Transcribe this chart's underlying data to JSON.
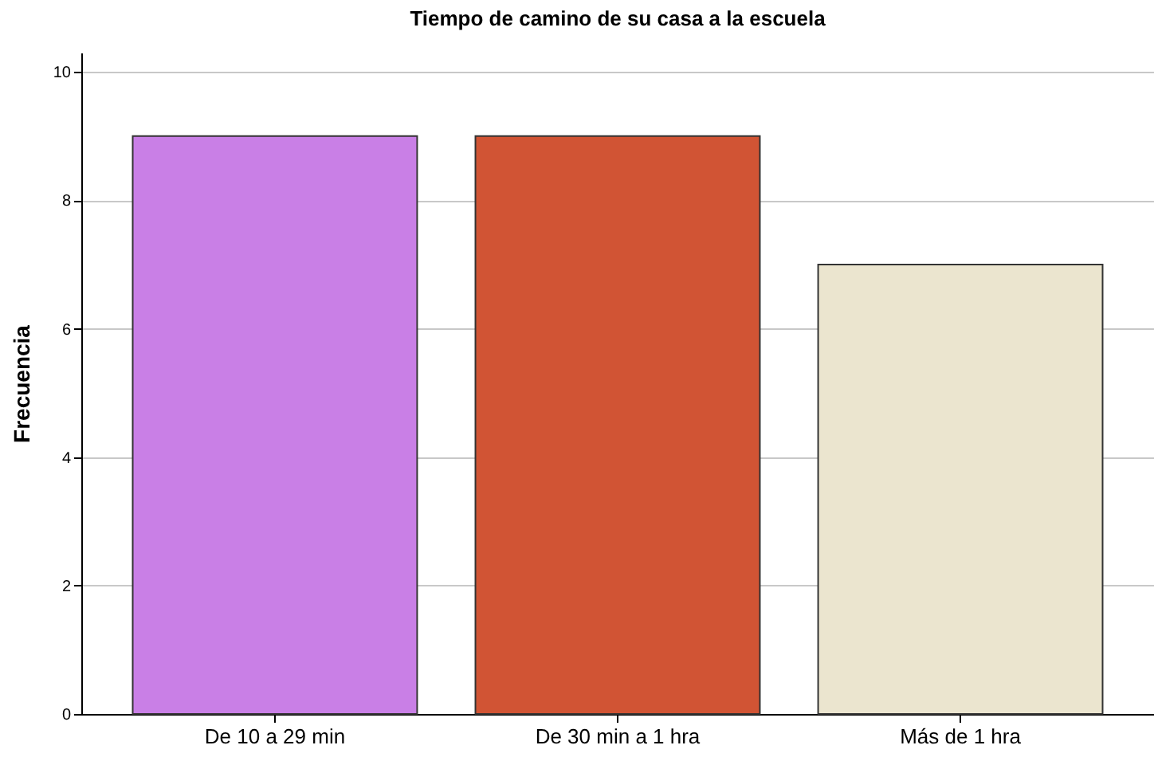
{
  "chart_data": {
    "type": "bar",
    "title": "Tiempo de camino de su casa a la escuela",
    "ylabel": "Frecuencia",
    "categories": [
      "De 10 a 29 min",
      "De 30 min a 1 hra",
      "Más de 1 hra"
    ],
    "values": [
      9,
      9,
      7
    ],
    "colors": [
      "#c97fe6",
      "#d15434",
      "#ebe5cf"
    ],
    "ylim": [
      0,
      10.3
    ],
    "yticks": [
      0,
      2,
      4,
      6,
      8,
      10
    ],
    "grid": "y"
  }
}
